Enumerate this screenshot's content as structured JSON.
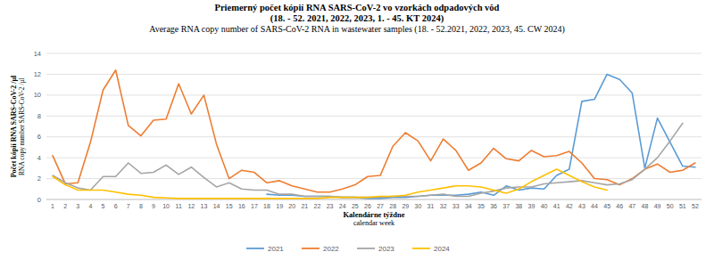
{
  "chart_data": {
    "type": "line",
    "title": [
      "Priemerný počet kópií RNA SARS-CoV-2 vo vzorkách odpadových vôd",
      "(18.  - 52. 2021, 2022, 2023, 1. - 45. KT 2024)"
    ],
    "subtitle": "Average RNA copy number of SARS-CoV-2 RNA in wastewater samples (18. - 52.2021, 2022, 2023, 45. CW 2024)",
    "x_label": [
      "Kalendárne týždne",
      "calendar week"
    ],
    "y_label": [
      "Počet kópií RNA SARS-CoV-2 /µl",
      "RNA copy number SARS-CoV-2 /µl"
    ],
    "categories": [
      "1",
      "2",
      "3",
      "4",
      "5",
      "6",
      "7",
      "8",
      "9",
      "10",
      "11",
      "12",
      "13",
      "14",
      "15",
      "16",
      "17",
      "18",
      "19",
      "20",
      "21",
      "22",
      "23",
      "24",
      "25",
      "26",
      "27",
      "28",
      "29",
      "30",
      "31",
      "32",
      "33",
      "34",
      "35",
      "36",
      "37",
      "38",
      "39",
      "40",
      "41",
      "42",
      "43",
      "44",
      "45",
      "46",
      "47",
      "48",
      "49",
      "50",
      "51",
      "52"
    ],
    "series": [
      {
        "name": "2021",
        "color": "#5b9bd5",
        "values": [
          null,
          null,
          null,
          null,
          null,
          null,
          null,
          null,
          null,
          null,
          null,
          null,
          null,
          null,
          null,
          null,
          null,
          0.5,
          0.4,
          0.4,
          0.3,
          0.3,
          0.3,
          0.2,
          0.2,
          0.1,
          0.1,
          0.2,
          0.2,
          0.3,
          0.4,
          0.4,
          0.4,
          0.5,
          0.7,
          0.4,
          1.3,
          0.9,
          1.1,
          1.0,
          2.3,
          2.9,
          9.4,
          9.6,
          12.0,
          11.5,
          10.2,
          3.0,
          7.8,
          5.5,
          3.2,
          3.1
        ]
      },
      {
        "name": "2022",
        "color": "#ed7d31",
        "values": [
          4.2,
          1.5,
          1.6,
          5.5,
          10.5,
          12.4,
          7.1,
          6.1,
          7.6,
          7.7,
          11.1,
          8.2,
          10.0,
          5.3,
          2.0,
          2.8,
          2.6,
          1.6,
          1.8,
          1.3,
          1.0,
          0.7,
          0.7,
          1.0,
          1.4,
          2.2,
          2.3,
          5.1,
          6.4,
          5.6,
          3.7,
          5.8,
          4.7,
          2.8,
          3.5,
          4.9,
          3.9,
          3.7,
          4.7,
          4.1,
          4.2,
          4.6,
          3.5,
          2.0,
          1.9,
          1.4,
          2.0,
          2.9,
          3.4,
          2.6,
          2.8,
          3.5
        ]
      },
      {
        "name": "2023",
        "color": "#a5a5a5",
        "values": [
          2.3,
          1.6,
          1.1,
          0.9,
          2.2,
          2.2,
          3.5,
          2.5,
          2.6,
          3.3,
          2.4,
          3.1,
          2.1,
          1.2,
          1.6,
          1.0,
          0.9,
          0.9,
          0.5,
          0.5,
          0.3,
          0.3,
          0.3,
          0.2,
          0.2,
          0.2,
          0.2,
          0.3,
          0.3,
          0.3,
          0.4,
          0.5,
          0.3,
          0.3,
          0.6,
          0.8,
          1.1,
          1.2,
          1.2,
          1.5,
          1.6,
          1.7,
          1.8,
          1.6,
          1.4,
          1.5,
          1.9,
          2.9,
          4.0,
          5.6,
          7.3,
          null
        ]
      },
      {
        "name": "2024",
        "color": "#ffc000",
        "values": [
          2.2,
          1.4,
          0.9,
          0.9,
          0.9,
          0.7,
          0.5,
          0.4,
          0.2,
          0.15,
          0.1,
          0.1,
          0.1,
          0.1,
          0.1,
          0.1,
          0.1,
          0.1,
          0.1,
          0.1,
          0.1,
          0.1,
          0.2,
          0.2,
          0.2,
          0.2,
          0.3,
          0.3,
          0.4,
          0.7,
          0.9,
          1.1,
          1.3,
          1.3,
          1.2,
          0.9,
          0.6,
          1.0,
          1.7,
          2.3,
          2.9,
          2.3,
          1.7,
          1.2,
          0.9,
          null,
          null,
          null,
          null,
          null,
          null,
          null
        ]
      }
    ],
    "ylim": [
      0,
      14
    ],
    "yticks": [
      0,
      2,
      4,
      6,
      8,
      10,
      12,
      14
    ],
    "grid": true,
    "legend": "bottom"
  }
}
